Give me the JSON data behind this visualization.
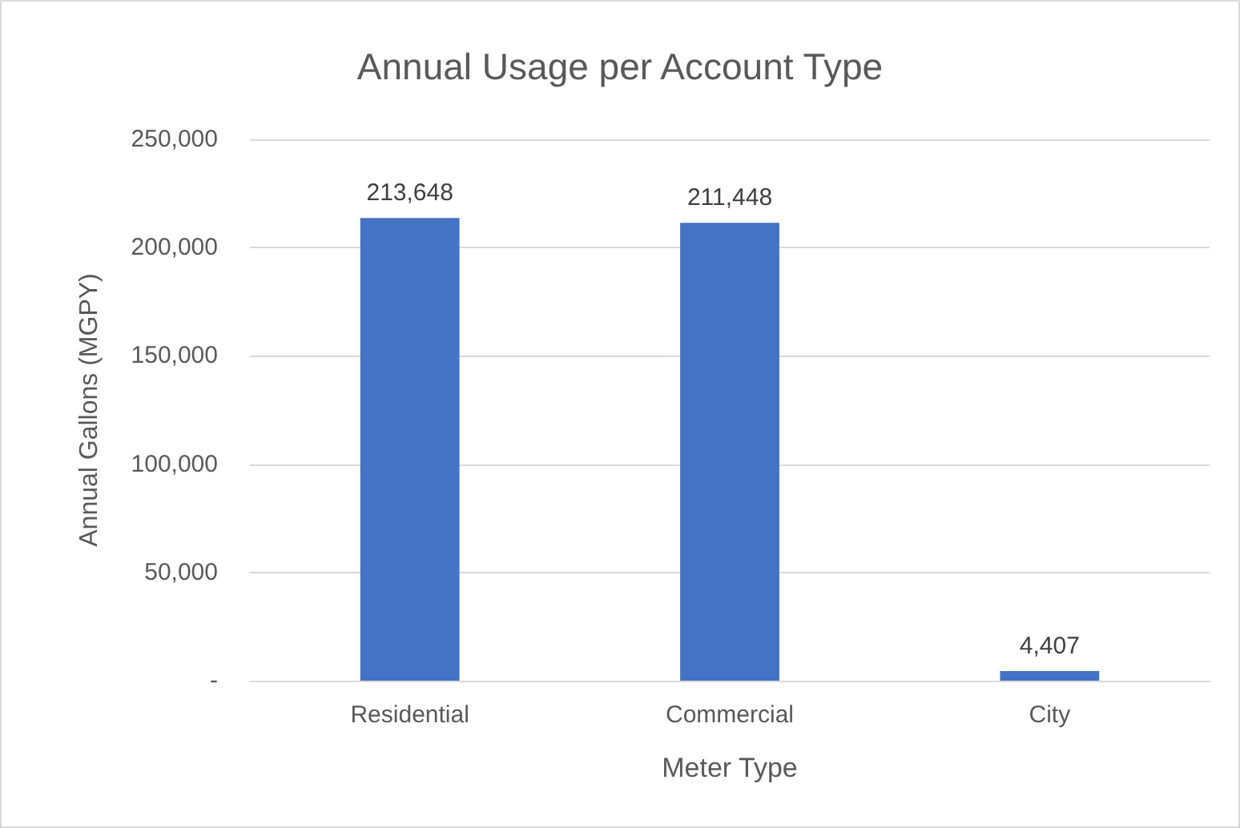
{
  "chart_data": {
    "type": "bar",
    "title": "Annual Usage per Account Type",
    "xlabel": "Meter Type",
    "ylabel": "Annual Gallons (MGPY)",
    "categories": [
      "Residential",
      "Commercial",
      "City"
    ],
    "values": [
      213648,
      211448,
      4407
    ],
    "color": "#4472c4",
    "value_labels": [
      "213,648",
      "211,448",
      "4,407"
    ],
    "ylim": [
      0,
      250000
    ],
    "yticks": [
      {
        "value": 0,
        "label": "-"
      },
      {
        "value": 50000,
        "label": "50,000"
      },
      {
        "value": 100000,
        "label": "100,000"
      },
      {
        "value": 150000,
        "label": "150,000"
      },
      {
        "value": 200000,
        "label": "200,000"
      },
      {
        "value": 250000,
        "label": "250,000"
      }
    ],
    "grid": "y"
  }
}
